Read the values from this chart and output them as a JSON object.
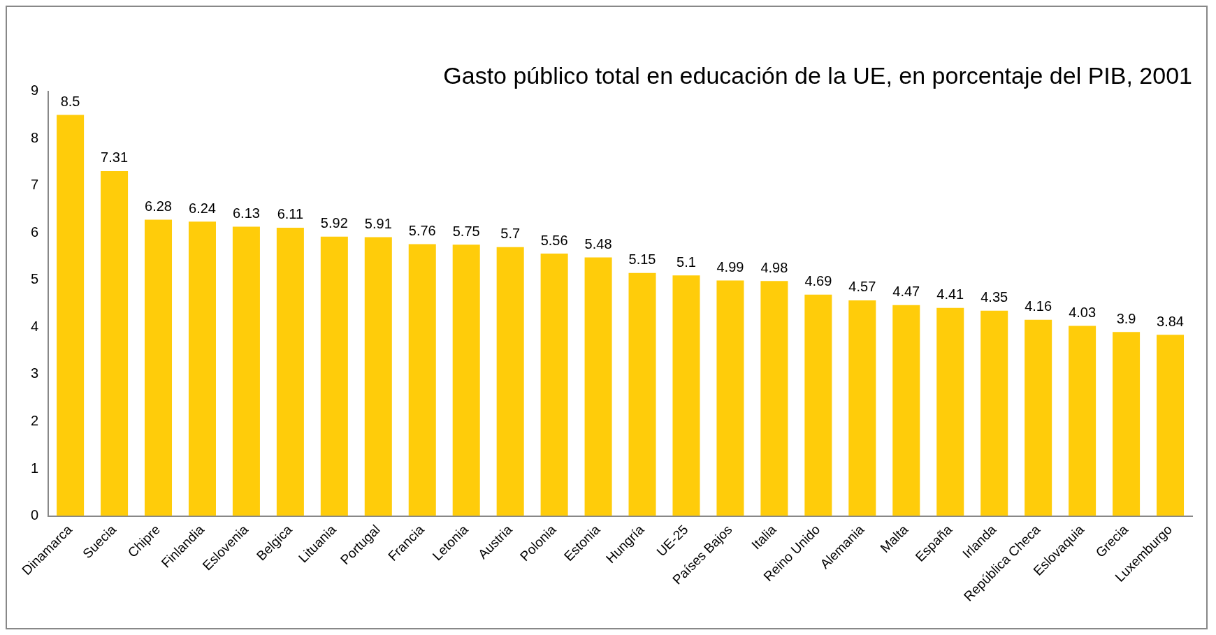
{
  "chart_data": {
    "type": "bar",
    "title": "Gasto público total en educación de la UE, en porcentaje del PIB, 2001",
    "categories": [
      "Dinamarca",
      "Suecia",
      "Chipre",
      "Finlandia",
      "Eslovenia",
      "Belgica",
      "Lituania",
      "Portugal",
      "Francia",
      "Letonia",
      "Austria",
      "Polonia",
      "Estonia",
      "Hungría",
      "UE-25",
      "Países Bajos",
      "Italia",
      "Reino Unido",
      "Alemania",
      "Malta",
      "España",
      "Irlanda",
      "República Checa",
      "Eslovaquia",
      "Grecia",
      "Luxemburgo"
    ],
    "values": [
      8.5,
      7.31,
      6.28,
      6.24,
      6.13,
      6.11,
      5.92,
      5.91,
      5.76,
      5.75,
      5.7,
      5.56,
      5.48,
      5.15,
      5.1,
      4.99,
      4.98,
      4.69,
      4.57,
      4.47,
      4.41,
      4.35,
      4.16,
      4.03,
      3.9,
      3.84
    ],
    "color": "#ffcc0a",
    "ylim": [
      0,
      9
    ],
    "yticks": [
      0,
      1,
      2,
      3,
      4,
      5,
      6,
      7,
      8,
      9
    ],
    "grid": false,
    "legend": false,
    "data_labels": true
  }
}
